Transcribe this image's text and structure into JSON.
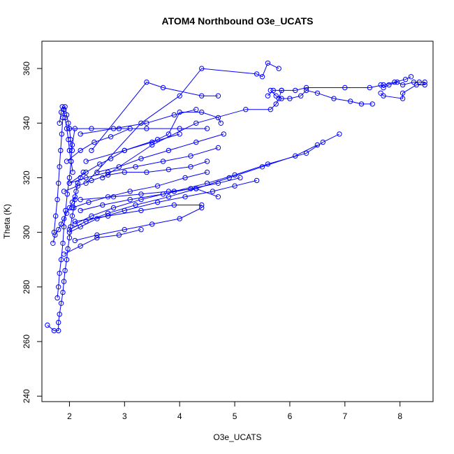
{
  "chart_data": {
    "type": "line",
    "title": "ATOM4 Northbound O3e_UCATS",
    "xlabel": "O3e_UCATS",
    "ylabel": "Theta (K)",
    "xlim": [
      1.5,
      8.6
    ],
    "ylim": [
      238,
      370
    ],
    "xticks": [
      2,
      3,
      4,
      5,
      6,
      7,
      8
    ],
    "yticks": [
      240,
      260,
      280,
      300,
      320,
      340,
      360
    ],
    "grid": false,
    "legend": "none",
    "color": "#0000ff",
    "marker": "open-circle",
    "series": [
      {
        "x": [
          1.6,
          1.72,
          1.8,
          1.8,
          1.82,
          1.85,
          1.88,
          1.9,
          1.92,
          1.95,
          1.97,
          2.0,
          2.02,
          2.05,
          2.08,
          2.1,
          2.12,
          2.15,
          2.2,
          2.25
        ],
        "y": [
          266,
          264,
          264,
          267,
          270,
          274,
          278,
          282,
          286,
          290,
          294,
          298,
          302,
          306,
          309,
          312,
          315,
          318,
          320,
          322
        ]
      },
      {
        "x": [
          1.72,
          1.75,
          1.78,
          1.8,
          1.82,
          1.84,
          1.86,
          1.88,
          1.9,
          1.92,
          1.95,
          1.98,
          2.0,
          2.02,
          2.05
        ],
        "y": [
          300,
          306,
          312,
          318,
          324,
          330,
          336,
          342,
          345,
          346,
          343,
          340,
          338,
          334,
          330
        ]
      },
      {
        "x": [
          1.78,
          1.8,
          1.82,
          1.85,
          1.88,
          1.9,
          1.93,
          1.96,
          2.0,
          2.03,
          2.05,
          2.1
        ],
        "y": [
          276,
          280,
          285,
          290,
          296,
          302,
          308,
          314,
          320,
          326,
          332,
          338
        ]
      },
      {
        "x": [
          1.82,
          1.85,
          1.87,
          1.9,
          1.92,
          1.95,
          1.98,
          2.0,
          2.03,
          2.06
        ],
        "y": [
          340,
          344,
          346,
          345,
          342,
          338,
          334,
          330,
          326,
          322
        ]
      },
      {
        "x": [
          1.7,
          1.74,
          1.8,
          1.85,
          1.9,
          1.95,
          2.0,
          2.05,
          2.1
        ],
        "y": [
          296,
          299,
          301,
          303,
          305,
          307,
          309,
          311,
          313
        ]
      },
      {
        "x": [
          2.0,
          2.2,
          2.5,
          3.0,
          3.6,
          4.1,
          4.6,
          5.0,
          5.4
        ],
        "y": [
          300,
          302,
          305,
          308,
          311,
          313,
          315,
          317,
          319
        ]
      },
      {
        "x": [
          2.1,
          2.4,
          2.8,
          3.3,
          3.9,
          4.5,
          5.0,
          5.6,
          6.3,
          6.6,
          6.9
        ],
        "y": [
          303,
          306,
          309,
          312,
          315,
          318,
          321,
          325,
          329,
          333,
          336
        ]
      },
      {
        "x": [
          2.0,
          2.3,
          2.7,
          3.2,
          3.8,
          4.3,
          4.9,
          5.5,
          6.1,
          6.5
        ],
        "y": [
          301,
          304,
          307,
          310,
          313,
          316,
          320,
          324,
          328,
          332
        ]
      },
      {
        "x": [
          2.2,
          2.6,
          3.1,
          3.7,
          4.2,
          4.7,
          5.1
        ],
        "y": [
          308,
          310,
          312,
          314,
          316,
          318,
          320
        ]
      },
      {
        "x": [
          2.1,
          2.5,
          3.0,
          3.5,
          4.0,
          4.4
        ],
        "y": [
          297,
          299,
          301,
          303,
          305,
          309
        ]
      },
      {
        "x": [
          2.0,
          2.4,
          2.9,
          3.4,
          4.0,
          4.5
        ],
        "y": [
          338,
          338,
          338,
          338,
          338,
          338
        ]
      },
      {
        "x": [
          2.0,
          2.3,
          2.7,
          3.2,
          3.7,
          4.2,
          4.7
        ],
        "y": [
          318,
          320,
          322,
          324,
          326,
          328,
          331
        ]
      },
      {
        "x": [
          2.2,
          2.8,
          3.3,
          3.8,
          4.3,
          4.7
        ],
        "y": [
          312,
          313,
          314,
          315,
          316,
          313
        ]
      },
      {
        "x": [
          2.1,
          2.7,
          3.3,
          3.9,
          4.4
        ],
        "y": [
          304,
          306,
          308,
          310,
          310
        ]
      },
      {
        "x": [
          2.2,
          2.8,
          3.4,
          3.9,
          4.3
        ],
        "y": [
          336,
          338,
          340,
          343,
          345
        ]
      },
      {
        "x": [
          2.5,
          2.9,
          3.3,
          3.8,
          4.3,
          4.8
        ],
        "y": [
          322,
          324,
          327,
          330,
          333,
          336
        ]
      },
      {
        "x": [
          2.3,
          3.0,
          3.6,
          3.8,
          4.0,
          4.4,
          4.7,
          4.75
        ],
        "y": [
          326,
          330,
          334,
          336,
          344,
          344,
          342,
          340
        ]
      },
      {
        "x": [
          2.4,
          3.4,
          3.7,
          4.4,
          4.7
        ],
        "y": [
          330,
          355,
          353,
          350,
          350
        ]
      },
      {
        "x": [
          2.3,
          3.3,
          4.0,
          4.4,
          5.4,
          5.5,
          5.6,
          5.8
        ],
        "y": [
          318,
          340,
          350,
          360,
          358,
          357,
          362,
          360
        ]
      },
      {
        "x": [
          2.6,
          3.5,
          4.3,
          5.2,
          5.65,
          5.75,
          5.8,
          5.85
        ],
        "y": [
          320,
          332,
          340,
          345,
          345,
          347,
          349,
          352
        ]
      },
      {
        "x": [
          5.65,
          5.75,
          5.85,
          6.0,
          6.2,
          6.3,
          6.5,
          6.8,
          7.1,
          7.3,
          7.5
        ],
        "y": [
          352,
          350,
          349,
          349,
          350,
          352,
          351,
          349,
          348,
          347,
          347
        ]
      },
      {
        "x": [
          5.6,
          5.7,
          5.85,
          6.1,
          6.3,
          7.0,
          7.45,
          7.7,
          7.9,
          8.1,
          8.2
        ],
        "y": [
          350,
          352,
          352,
          352,
          353,
          353,
          353,
          354,
          355,
          356,
          357
        ]
      },
      {
        "x": [
          7.65,
          7.7,
          7.8,
          7.95,
          8.05,
          8.25,
          8.35,
          8.45,
          8.45,
          8.3,
          8.05,
          8.05,
          7.7,
          7.65
        ],
        "y": [
          354,
          353,
          354,
          355,
          354,
          355,
          355,
          355,
          354,
          354,
          351,
          349,
          350,
          351
        ]
      },
      {
        "x": [
          2.05,
          2.35,
          2.7,
          3.1,
          3.6,
          4.1,
          4.5
        ],
        "y": [
          309,
          311,
          313,
          315,
          317,
          320,
          322
        ]
      },
      {
        "x": [
          1.9,
          2.2,
          2.5,
          2.9,
          3.3
        ],
        "y": [
          292,
          295,
          298,
          299,
          301
        ]
      },
      {
        "x": [
          2.0,
          2.3,
          2.55,
          2.75,
          3.0,
          3.5,
          4.0
        ],
        "y": [
          318,
          322,
          325,
          327,
          330,
          333,
          336
        ]
      },
      {
        "x": [
          1.95,
          2.2,
          2.45,
          2.75,
          3.1
        ],
        "y": [
          326,
          330,
          333,
          335,
          338
        ]
      },
      {
        "x": [
          1.9,
          2.15,
          2.4,
          2.7,
          3.0,
          3.4,
          3.8,
          4.2,
          4.5
        ],
        "y": [
          315,
          317,
          319,
          321,
          322,
          322,
          323,
          324,
          326
        ]
      }
    ]
  }
}
